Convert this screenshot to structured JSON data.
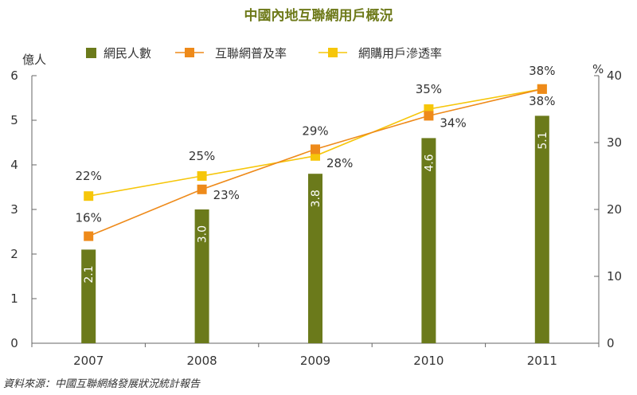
{
  "chart_data": {
    "type": "bar",
    "title": "中國內地互聯網用戶概況",
    "categories": [
      "2007",
      "2008",
      "2009",
      "2010",
      "2011"
    ],
    "y_left": {
      "unit": "億人",
      "ticks": [
        "0",
        "1",
        "2",
        "3",
        "4",
        "5",
        "6"
      ],
      "range": [
        0,
        6
      ]
    },
    "y_right": {
      "unit": "%",
      "ticks": [
        "0",
        "10",
        "20",
        "30",
        "40"
      ],
      "range": [
        0,
        40
      ]
    },
    "series": [
      {
        "name": "網民人數",
        "type": "bar",
        "axis": "left",
        "color": "#6b7a1b",
        "values": [
          2.1,
          3.0,
          3.8,
          4.6,
          5.1
        ],
        "labels": [
          "2.1",
          "3.0",
          "3.8",
          "4.6",
          "5.1"
        ]
      },
      {
        "name": "互聯網普及率",
        "type": "line",
        "axis": "right",
        "color": "#ee8a1a",
        "values": [
          16,
          23,
          29,
          34,
          38
        ],
        "labels": [
          "16%",
          "23%",
          "29%",
          "34%",
          "38%"
        ]
      },
      {
        "name": "網購用戶滲透率",
        "type": "line",
        "axis": "right",
        "color": "#f6c60a",
        "values": [
          22,
          25,
          28,
          35,
          38
        ],
        "labels": [
          "22%",
          "25%",
          "28%",
          "35%",
          "38%"
        ]
      }
    ],
    "legend": "top",
    "grid": false
  },
  "source": "資料來源：中國互聯網絡發展狀況統計報告"
}
